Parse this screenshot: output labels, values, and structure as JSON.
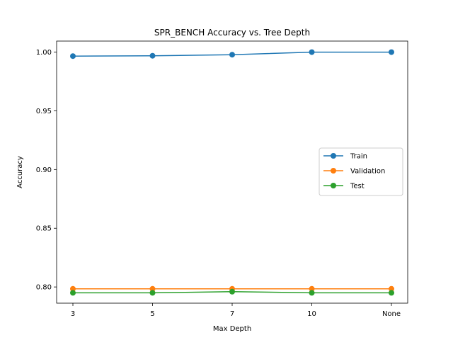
{
  "chart_data": {
    "type": "line",
    "title": "SPR_BENCH Accuracy vs. Tree Depth",
    "xlabel": "Max Depth",
    "ylabel": "Accuracy",
    "categories": [
      "3",
      "5",
      "7",
      "10",
      "None"
    ],
    "ylim": [
      0.7862,
      1.0094
    ],
    "yticks": [
      "0.80",
      "0.85",
      "0.90",
      "0.95",
      "1.00"
    ],
    "legend_position": "center-right",
    "grid": false,
    "series": [
      {
        "name": "Train",
        "color": "#1f77b4",
        "values": [
          0.9966,
          0.9969,
          0.9978,
          1.0,
          1.0
        ]
      },
      {
        "name": "Validation",
        "color": "#ff7f0e",
        "values": [
          0.7984,
          0.7984,
          0.7984,
          0.7984,
          0.7984
        ]
      },
      {
        "name": "Test",
        "color": "#2ca02c",
        "values": [
          0.795,
          0.795,
          0.796,
          0.795,
          0.795
        ]
      }
    ]
  }
}
